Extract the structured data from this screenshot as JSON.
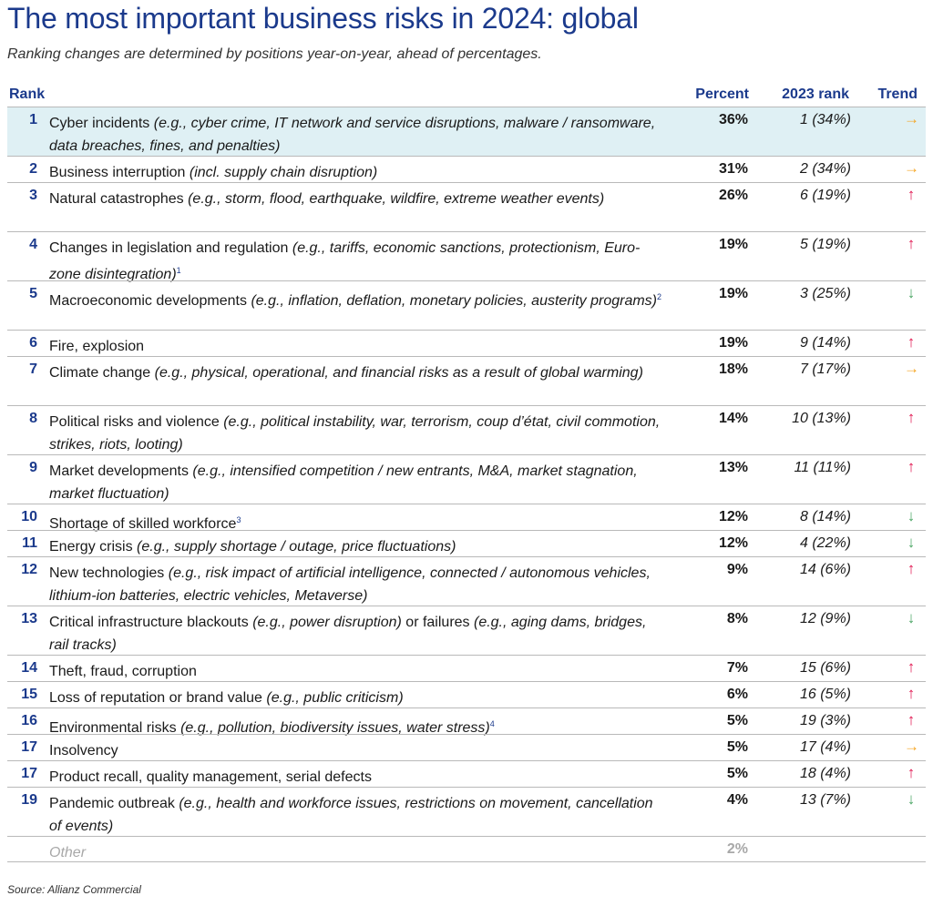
{
  "title": "The most important business risks in 2024: global",
  "subtitle": "Ranking changes are determined by positions year-on-year, ahead of percentages.",
  "columns": {
    "rank": "Rank",
    "percent": "Percent",
    "prev_rank": "2023 rank",
    "trend": "Trend"
  },
  "colors": {
    "up": "#e0154f",
    "down": "#4aa564",
    "same": "#f5a623",
    "brand": "#1b3a8c",
    "highlight": "#dff0f4"
  },
  "trend_icons": {
    "up": "↑",
    "down": "↓",
    "same": "→"
  },
  "rows": [
    {
      "rank": "1",
      "name": "Cyber incidents",
      "note": "(e.g., cyber crime, IT network and service disruptions, malware / ransomware, data breaches, fines, and penalties)",
      "sup": "",
      "percent": "36%",
      "prev": "1 (34%)",
      "trend": "same",
      "highlight": true,
      "lines": 2
    },
    {
      "rank": "2",
      "name": "Business interruption",
      "note": "(incl. supply chain disruption)",
      "sup": "",
      "percent": "31%",
      "prev": "2 (34%)",
      "trend": "same",
      "lines": 1
    },
    {
      "rank": "3",
      "name": "Natural catastrophes",
      "note": "(e.g., storm, flood, earthquake, wildfire, extreme weather events)",
      "sup": "",
      "percent": "26%",
      "prev": "6 (19%)",
      "trend": "up",
      "lines": 2
    },
    {
      "rank": "4",
      "name": "Changes in legislation and regulation",
      "note": "(e.g., tariffs, economic sanctions, protectionism, Euro-zone disintegration)",
      "sup": "1",
      "percent": "19%",
      "prev": "5 (19%)",
      "trend": "up",
      "lines": 2
    },
    {
      "rank": "5",
      "name": "Macroeconomic developments",
      "note": "(e.g., inflation, deflation, monetary policies, austerity programs)",
      "sup": "2",
      "percent": "19%",
      "prev": "3 (25%)",
      "trend": "down",
      "lines": 2
    },
    {
      "rank": "6",
      "name": "Fire, explosion",
      "note": "",
      "sup": "",
      "percent": "19%",
      "prev": "9 (14%)",
      "trend": "up",
      "lines": 1
    },
    {
      "rank": "7",
      "name": "Climate change",
      "note": "(e.g., physical, operational, and financial risks as a result of global warming)",
      "sup": "",
      "percent": "18%",
      "prev": "7 (17%)",
      "trend": "same",
      "lines": 2
    },
    {
      "rank": "8",
      "name": "Political risks and violence",
      "note": "(e.g., political instability, war, terrorism, coup d’état, civil commotion, strikes, riots, looting)",
      "sup": "",
      "percent": "14%",
      "prev": "10 (13%)",
      "trend": "up",
      "lines": 2
    },
    {
      "rank": "9",
      "name": "Market developments",
      "note": "(e.g., intensified competition / new entrants, M&A, market stagnation, market fluctuation)",
      "sup": "",
      "percent": "13%",
      "prev": "11 (11%)",
      "trend": "up",
      "lines": 2
    },
    {
      "rank": "10",
      "name": "Shortage of skilled workforce",
      "note": "",
      "sup": "3",
      "percent": "12%",
      "prev": "8 (14%)",
      "trend": "down",
      "lines": 1
    },
    {
      "rank": "11",
      "name": "Energy crisis",
      "note": "(e.g., supply shortage / outage, price fluctuations)",
      "sup": "",
      "percent": "12%",
      "prev": "4 (22%)",
      "trend": "down",
      "lines": 1
    },
    {
      "rank": "12",
      "name": "New technologies",
      "note": "(e.g., risk impact of artificial intelligence, connected / autonomous vehicles, lithium-ion batteries, electric vehicles, Metaverse)",
      "sup": "",
      "percent": "9%",
      "prev": "14 (6%)",
      "trend": "up",
      "lines": 2
    },
    {
      "rank": "13",
      "name": "Critical infrastructure blackouts",
      "note": "(e.g., power disruption)",
      "name2": " or failures ",
      "note2": "(e.g., aging dams, bridges, rail tracks)",
      "sup": "",
      "percent": "8%",
      "prev": "12 (9%)",
      "trend": "down",
      "lines": 2
    },
    {
      "rank": "14",
      "name": "Theft, fraud, corruption",
      "note": "",
      "sup": "",
      "percent": "7%",
      "prev": "15 (6%)",
      "trend": "up",
      "lines": 1
    },
    {
      "rank": "15",
      "name": "Loss of reputation or brand value",
      "note": "(e.g., public criticism)",
      "sup": "",
      "percent": "6%",
      "prev": "16 (5%)",
      "trend": "up",
      "lines": 1
    },
    {
      "rank": "16",
      "name": "Environmental risks",
      "note": "(e.g., pollution, biodiversity issues, water stress)",
      "sup": "4",
      "percent": "5%",
      "prev": "19 (3%)",
      "trend": "up",
      "lines": 1
    },
    {
      "rank": "17",
      "name": "Insolvency",
      "note": "",
      "sup": "",
      "percent": "5%",
      "prev": "17 (4%)",
      "trend": "same",
      "lines": 1
    },
    {
      "rank": "17",
      "name": "Product recall, quality management, serial defects",
      "note": "",
      "sup": "",
      "percent": "5%",
      "prev": "18 (4%)",
      "trend": "up",
      "lines": 1
    },
    {
      "rank": "19",
      "name": "Pandemic outbreak",
      "note": "(e.g., health and workforce issues, restrictions on movement, cancellation of events)",
      "sup": "",
      "percent": "4%",
      "prev": "13 (7%)",
      "trend": "down",
      "lines": 2
    },
    {
      "rank": "",
      "name": "Other",
      "note": "",
      "sup": "",
      "percent": "2%",
      "prev": "",
      "trend": "",
      "other": true,
      "lines": 1
    }
  ],
  "source": "Source: Allianz Commercial"
}
